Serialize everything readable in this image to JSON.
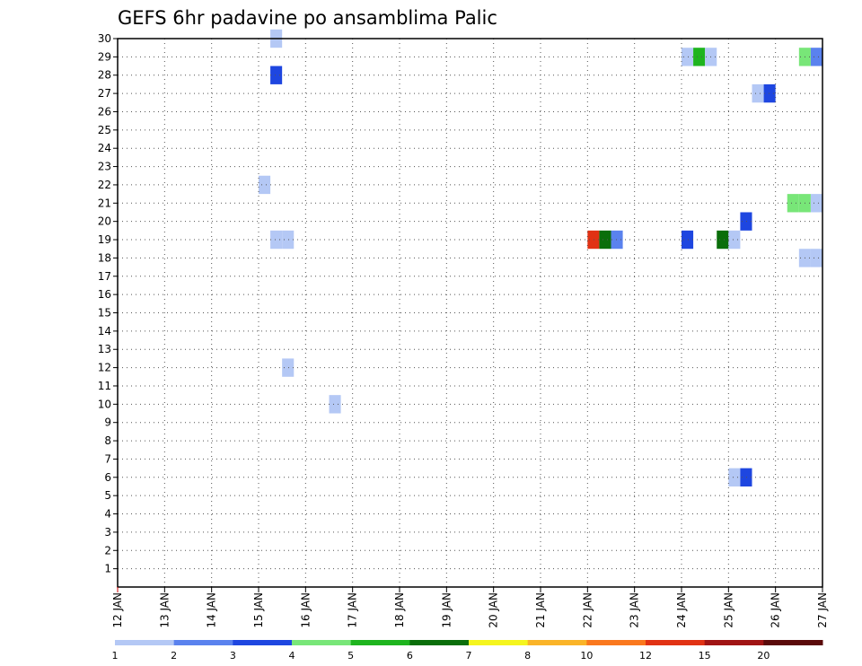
{
  "chart_data": {
    "type": "heatmap",
    "title": "GEFS 6hr padavine po ansamblima Palic",
    "xlabel": "",
    "ylabel": "",
    "x_tick_labels": [
      "12 JAN",
      "13 JAN",
      "14 JAN",
      "15 JAN",
      "16 JAN",
      "17 JAN",
      "18 JAN",
      "19 JAN",
      "20 JAN",
      "21 JAN",
      "22 JAN",
      "23 JAN",
      "24 JAN",
      "25 JAN",
      "26 JAN",
      "27 JAN"
    ],
    "xlim": [
      12,
      27
    ],
    "ylim": [
      0,
      30
    ],
    "y_ticks": [
      1,
      2,
      3,
      4,
      5,
      6,
      7,
      8,
      9,
      10,
      11,
      12,
      13,
      14,
      15,
      16,
      17,
      18,
      19,
      20,
      21,
      22,
      23,
      24,
      25,
      26,
      27,
      28,
      29,
      30
    ],
    "grid": true,
    "time_step_hours": 6,
    "colorbar": {
      "tick_labels": [
        "1",
        "2",
        "3",
        "4",
        "5",
        "6",
        "7",
        "8",
        "10",
        "12",
        "15",
        "20"
      ],
      "colors": [
        "#b4c8f5",
        "#5a82ee",
        "#1e46e0",
        "#78e678",
        "#1eb41e",
        "#0a6e0a",
        "#f5f51e",
        "#fab428",
        "#fa781e",
        "#e13214",
        "#a01414",
        "#5a0a0a"
      ]
    },
    "cells": [
      {
        "day": 15.25,
        "member": 30,
        "value": 1
      },
      {
        "day": 15.25,
        "member": 28,
        "value": 3
      },
      {
        "day": 15.0,
        "member": 22,
        "value": 1
      },
      {
        "day": 15.25,
        "member": 19,
        "value": 1
      },
      {
        "day": 15.5,
        "member": 19,
        "value": 1
      },
      {
        "day": 15.5,
        "member": 12,
        "value": 1
      },
      {
        "day": 16.5,
        "member": 10,
        "value": 1
      },
      {
        "day": 22.0,
        "member": 19,
        "value": 12
      },
      {
        "day": 22.25,
        "member": 19,
        "value": 6
      },
      {
        "day": 22.5,
        "member": 19,
        "value": 2
      },
      {
        "day": 24.0,
        "member": 29,
        "value": 1
      },
      {
        "day": 24.25,
        "member": 29,
        "value": 5
      },
      {
        "day": 24.5,
        "member": 29,
        "value": 1
      },
      {
        "day": 24.0,
        "member": 19,
        "value": 3
      },
      {
        "day": 24.75,
        "member": 19,
        "value": 6
      },
      {
        "day": 25.0,
        "member": 19,
        "value": 1
      },
      {
        "day": 25.25,
        "member": 20,
        "value": 3
      },
      {
        "day": 25.0,
        "member": 6,
        "value": 1
      },
      {
        "day": 25.25,
        "member": 6,
        "value": 3
      },
      {
        "day": 25.5,
        "member": 27,
        "value": 1
      },
      {
        "day": 25.75,
        "member": 27,
        "value": 3
      },
      {
        "day": 26.25,
        "member": 21,
        "value": 4
      },
      {
        "day": 26.5,
        "member": 21,
        "value": 4
      },
      {
        "day": 26.75,
        "member": 21,
        "value": 1
      },
      {
        "day": 26.5,
        "member": 29,
        "value": 4
      },
      {
        "day": 26.75,
        "member": 29,
        "value": 2
      },
      {
        "day": 26.5,
        "member": 18,
        "value": 1
      },
      {
        "day": 26.75,
        "member": 18,
        "value": 1
      }
    ]
  }
}
